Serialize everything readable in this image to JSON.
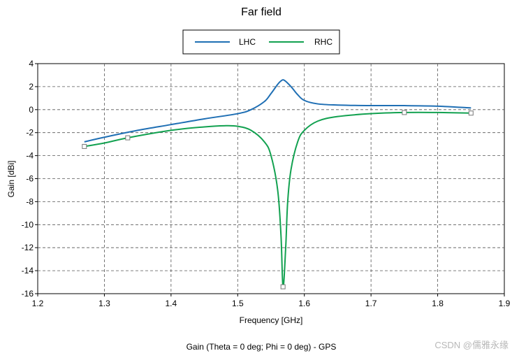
{
  "chart_data": {
    "type": "line",
    "title": "Far field",
    "xlabel": "Frequency [GHz]",
    "ylabel": "Gain [dBi]",
    "xlim": [
      1.2,
      1.9
    ],
    "ylim": [
      -16,
      4
    ],
    "xticks": [
      "1.2",
      "1.3",
      "1.4",
      "1.5",
      "1.6",
      "1.7",
      "1.8",
      "1.9"
    ],
    "yticks": [
      "4",
      "2",
      "0",
      "-2",
      "-4",
      "-6",
      "-8",
      "-10",
      "-12",
      "-14",
      "-16"
    ],
    "grid": true,
    "legend_position": "top-center",
    "series": [
      {
        "name": "LHC",
        "color": "#1f6fb4",
        "x": [
          1.27,
          1.3,
          1.35,
          1.4,
          1.45,
          1.5,
          1.52,
          1.54,
          1.55,
          1.56,
          1.565,
          1.57,
          1.58,
          1.59,
          1.6,
          1.62,
          1.65,
          1.7,
          1.75,
          1.8,
          1.85
        ],
        "y": [
          -2.8,
          -2.4,
          -1.8,
          -1.3,
          -0.8,
          -0.35,
          0.0,
          0.7,
          1.4,
          2.2,
          2.5,
          2.55,
          2.0,
          1.3,
          0.8,
          0.5,
          0.4,
          0.35,
          0.35,
          0.3,
          0.15
        ]
      },
      {
        "name": "RHC",
        "color": "#12a150",
        "x": [
          1.27,
          1.3,
          1.335,
          1.4,
          1.45,
          1.48,
          1.5,
          1.52,
          1.54,
          1.55,
          1.56,
          1.565,
          1.568,
          1.572,
          1.575,
          1.58,
          1.59,
          1.6,
          1.62,
          1.65,
          1.7,
          1.75,
          1.8,
          1.85
        ],
        "y": [
          -3.2,
          -2.9,
          -2.45,
          -1.8,
          -1.5,
          -1.4,
          -1.45,
          -1.8,
          -2.8,
          -4.0,
          -7.0,
          -11.0,
          -15.4,
          -12.0,
          -8.0,
          -5.2,
          -2.8,
          -1.8,
          -1.0,
          -0.6,
          -0.35,
          -0.25,
          -0.25,
          -0.3
        ],
        "markers_x": [
          1.27,
          1.335,
          1.568,
          1.75,
          1.85
        ],
        "markers_y": [
          -3.2,
          -2.45,
          -15.4,
          -0.25,
          -0.3
        ]
      }
    ],
    "caption": "Gain (Theta = 0 deg; Phi = 0 deg) - GPS"
  },
  "watermark": "CSDN @儒雅永缘"
}
